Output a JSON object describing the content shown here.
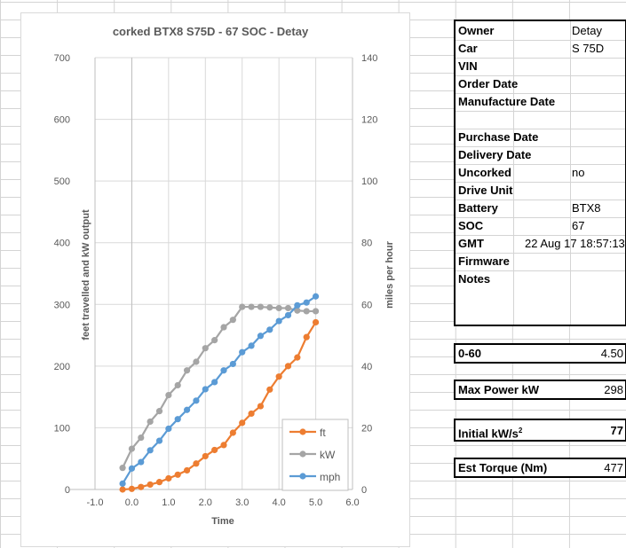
{
  "info": {
    "rows": [
      {
        "label": "Owner",
        "value": "Detay"
      },
      {
        "label": "Car",
        "value": "S 75D"
      },
      {
        "label": "VIN",
        "value": ""
      },
      {
        "label": "Order Date",
        "value": ""
      },
      {
        "label": "Manufacture Date",
        "value": ""
      },
      {
        "label": "",
        "value": ""
      },
      {
        "label": "Purchase Date",
        "value": ""
      },
      {
        "label": "Delivery Date",
        "value": ""
      },
      {
        "label": "Uncorked",
        "value": "no"
      },
      {
        "label": "Drive Unit",
        "value": ""
      },
      {
        "label": "Battery",
        "value": "BTX8"
      },
      {
        "label": "SOC",
        "value": "67"
      },
      {
        "label": "GMT",
        "value": "22 Aug 17 18:57:13"
      },
      {
        "label": "Firmware",
        "value": ""
      },
      {
        "label": "Notes",
        "value": ""
      }
    ]
  },
  "stats": {
    "zero_sixty": {
      "label": "0-60",
      "value": "4.50"
    },
    "max_power": {
      "label": "Max Power kW",
      "value": "298"
    },
    "initial": {
      "label": "Initial kW/s",
      "sup": "2",
      "value": "77"
    },
    "torque": {
      "label": "Est Torque (Nm)",
      "value": "477"
    }
  },
  "chart_data": {
    "type": "line",
    "title": "corked  BTX8 S75D - 67 SOC - Detay",
    "xlabel": "Time",
    "ylabel": "feet travelled and kW output",
    "y2label": "miles per hour",
    "xlim": [
      -1,
      6
    ],
    "ylim": [
      0,
      700
    ],
    "y2lim": [
      0,
      140
    ],
    "xticks": [
      "-1.0",
      "0.0",
      "1.0",
      "2.0",
      "3.0",
      "4.0",
      "5.0",
      "6.0"
    ],
    "yticks": [
      "0",
      "100",
      "200",
      "300",
      "400",
      "500",
      "600",
      "700"
    ],
    "y2ticks": [
      "0",
      "20",
      "40",
      "60",
      "80",
      "100",
      "120",
      "140"
    ],
    "legend_position": "bottom-right",
    "x": [
      -0.25,
      0,
      0.25,
      0.5,
      0.75,
      1,
      1.25,
      1.5,
      1.75,
      2,
      2.25,
      2.5,
      2.75,
      3,
      3.25,
      3.5,
      3.75,
      4,
      4.25,
      4.5,
      4.75,
      5
    ],
    "series": [
      {
        "name": "ft",
        "axis": "left",
        "color": "#ed7d31",
        "values": [
          0,
          1,
          4,
          8,
          12,
          18,
          24,
          31,
          42,
          54,
          64,
          72,
          92,
          108,
          123,
          135,
          162,
          183,
          200,
          214,
          247,
          271
        ]
      },
      {
        "name": "kW",
        "axis": "left",
        "color": "#a5a5a5",
        "values": [
          35,
          66,
          84,
          110,
          127,
          153,
          169,
          193,
          207,
          229,
          242,
          263,
          275,
          296,
          296,
          296,
          295,
          294,
          294,
          290,
          289,
          289
        ]
      },
      {
        "name": "mph",
        "axis": "right",
        "color": "#5b9bd5",
        "values": [
          1.9,
          6.8,
          8.9,
          12.7,
          15.8,
          19.7,
          22.8,
          25.8,
          28.8,
          32.5,
          34.8,
          38.6,
          40.7,
          44.5,
          46.6,
          49.8,
          51.8,
          54.6,
          56.5,
          59.7,
          60.6,
          62.6
        ]
      }
    ]
  }
}
